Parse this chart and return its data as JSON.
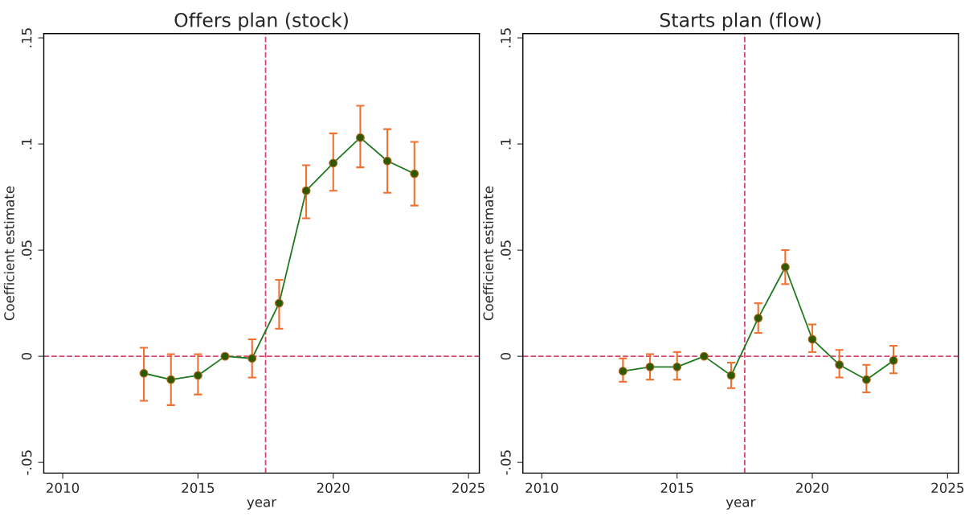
{
  "chart_data": [
    {
      "type": "line",
      "title": "Offers plan (stock)",
      "xlabel": "year",
      "ylabel": "Coefficient estimate",
      "x": [
        2013,
        2014,
        2015,
        2016,
        2017,
        2018,
        2019,
        2020,
        2021,
        2022,
        2023
      ],
      "series": [
        {
          "color": "#1f7a1f",
          "values": [
            -0.008,
            -0.011,
            -0.009,
            0,
            -0.001,
            0.025,
            0.078,
            0.091,
            0.103,
            0.092,
            0.086
          ],
          "errors": [
            [
              -0.021,
              0.004
            ],
            [
              -0.023,
              0.001
            ],
            [
              -0.018,
              0.001
            ],
            null,
            [
              -0.01,
              0.008
            ],
            [
              0.013,
              0.036
            ],
            [
              0.065,
              0.09
            ],
            [
              0.078,
              0.105
            ],
            [
              0.089,
              0.118
            ],
            [
              0.077,
              0.107
            ],
            [
              0.071,
              0.101
            ]
          ]
        }
      ],
      "xlim": [
        2009.3,
        2025.4
      ],
      "xticks": [
        2010,
        2015,
        2020,
        2025
      ],
      "ylim": [
        -0.055,
        0.152
      ],
      "yticks": [
        {
          "value": -0.05,
          "label": "-.05"
        },
        {
          "value": 0,
          "label": "0"
        },
        {
          "value": 0.05,
          "label": ".05"
        },
        {
          "value": 0.1,
          "label": ".1"
        },
        {
          "value": 0.15,
          "label": ".15"
        }
      ],
      "ref_lines": [
        {
          "axis": "x",
          "value": 2017.5,
          "color": "#d6476b",
          "line_style": "dashed"
        },
        {
          "axis": "y",
          "value": 0,
          "color": "#d6476b",
          "line_style": "dashed"
        }
      ],
      "marker": "circle",
      "grid": false
    },
    {
      "type": "line",
      "title": "Starts plan (flow)",
      "xlabel": "year",
      "ylabel": "Coefficient estimate",
      "x": [
        2013,
        2014,
        2015,
        2016,
        2017,
        2018,
        2019,
        2020,
        2021,
        2022,
        2023
      ],
      "series": [
        {
          "color": "#1f7a1f",
          "values": [
            -0.007,
            -0.005,
            -0.005,
            0,
            -0.009,
            0.018,
            0.042,
            0.008,
            -0.004,
            -0.011,
            -0.002
          ],
          "errors": [
            [
              -0.012,
              -0.001
            ],
            [
              -0.011,
              0.001
            ],
            [
              -0.011,
              0.002
            ],
            null,
            [
              -0.015,
              -0.003
            ],
            [
              0.011,
              0.025
            ],
            [
              0.034,
              0.05
            ],
            [
              0.002,
              0.015
            ],
            [
              -0.01,
              0.003
            ],
            [
              -0.017,
              -0.004
            ],
            [
              -0.008,
              0.005
            ]
          ]
        }
      ],
      "xlim": [
        2009.3,
        2025.4
      ],
      "xticks": [
        2010,
        2015,
        2020,
        2025
      ],
      "ylim": [
        -0.055,
        0.152
      ],
      "yticks": [
        {
          "value": -0.05,
          "label": "-.05"
        },
        {
          "value": 0,
          "label": "0"
        },
        {
          "value": 0.05,
          "label": ".05"
        },
        {
          "value": 0.1,
          "label": ".1"
        },
        {
          "value": 0.15,
          "label": ".15"
        }
      ],
      "ref_lines": [
        {
          "axis": "x",
          "value": 2017.5,
          "color": "#d6476b",
          "line_style": "dashed"
        },
        {
          "axis": "y",
          "value": 0,
          "color": "#d6476b",
          "line_style": "dashed"
        }
      ],
      "marker": "circle",
      "grid": false
    }
  ]
}
